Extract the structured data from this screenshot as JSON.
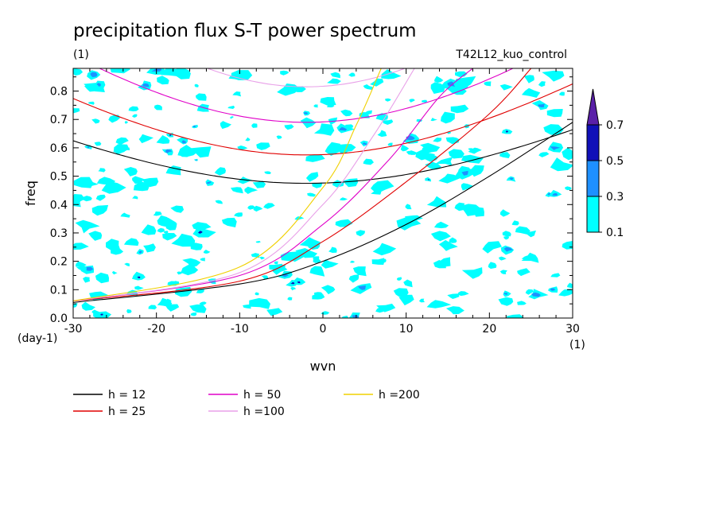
{
  "chart_data": {
    "type": "contour",
    "title": "precipitation flux S-T power spectrum",
    "subtitle_left": "(1)",
    "subtitle_right": "T42L12_kuo_control",
    "xlabel": "wvn",
    "ylabel": "freq",
    "x_unit": "(1)",
    "y_unit": "(day-1)",
    "xlim": [
      -30,
      30
    ],
    "ylim": [
      0,
      0.88
    ],
    "x_ticks": [
      -30,
      -20,
      -10,
      0,
      10,
      20,
      30
    ],
    "x_tick_labels": [
      "-30",
      "-20",
      "-10",
      "0",
      "10",
      "20",
      "30"
    ],
    "y_ticks": [
      0,
      0.1,
      0.2,
      0.3,
      0.4,
      0.5,
      0.6,
      0.7,
      0.8
    ],
    "y_tick_labels": [
      "0.0",
      "0.1",
      "0.2",
      "0.3",
      "0.4",
      "0.5",
      "0.6",
      "0.7",
      "0.8"
    ],
    "contour_levels": [
      "0.1",
      "0.3",
      "0.5",
      "0.7"
    ],
    "contour_colors": [
      "#00ffff",
      "#1e90ff",
      "#1010b8",
      "#5a20a8"
    ],
    "series": [
      {
        "name": "h = 12",
        "color": "#000000",
        "equivalent_depth": 12
      },
      {
        "name": "h = 25",
        "color": "#e00000",
        "equivalent_depth": 25
      },
      {
        "name": "h = 50",
        "color": "#e000c8",
        "equivalent_depth": 50
      },
      {
        "name": "h =100",
        "color": "#e8a0e8",
        "equivalent_depth": 100
      },
      {
        "name": "h =200",
        "color": "#f0d000",
        "equivalent_depth": 200
      }
    ],
    "curve_families": [
      "rossby_gravity_lower",
      "inertio_gravity_upper"
    ],
    "legend_position": "below"
  }
}
